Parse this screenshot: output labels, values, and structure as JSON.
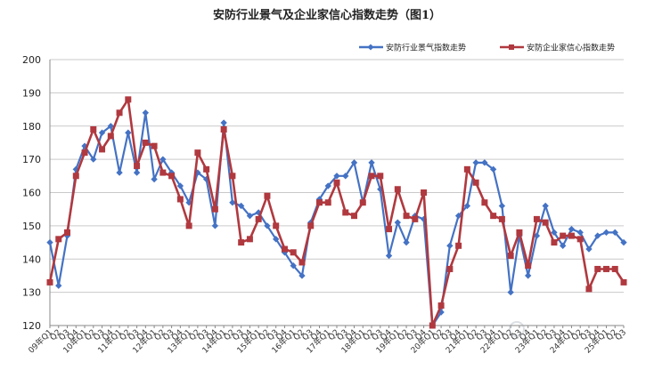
{
  "chart_data": {
    "type": "line",
    "title": "安防行业景气及企业家信心指数走势（图1）",
    "legend_position": "top-right",
    "grid": true,
    "ylim": [
      120,
      200
    ],
    "yticks": [
      120,
      130,
      140,
      150,
      160,
      170,
      180,
      190,
      200
    ],
    "x": [
      "09年Q1",
      "Q2",
      "Q3",
      "Q4",
      "10年Q1",
      "Q2",
      "Q3",
      "Q4",
      "11年Q1",
      "Q2",
      "Q3",
      "Q4",
      "12年Q1",
      "Q2",
      "Q3",
      "Q4",
      "13年Q1",
      "Q2",
      "Q3",
      "Q4",
      "14年Q1",
      "Q2",
      "Q3",
      "Q4",
      "15年Q1",
      "Q2",
      "Q3",
      "Q4",
      "16年Q1",
      "Q2",
      "Q3",
      "Q4",
      "17年Q1",
      "Q2",
      "Q3",
      "Q4",
      "18年Q1",
      "Q2",
      "Q3",
      "Q4",
      "19年Q1",
      "Q2",
      "Q3",
      "Q4",
      "20年Q1",
      "Q2",
      "Q3",
      "Q4",
      "21年Q1",
      "Q2",
      "Q3",
      "Q4",
      "22年Q1",
      "Q2",
      "Q3",
      "Q4",
      "23年Q1",
      "Q2",
      "Q3",
      "Q4",
      "24年Q1",
      "Q2",
      "Q3",
      "Q4",
      "25年Q1",
      "Q2",
      "Q3"
    ],
    "series": [
      {
        "name": "安防行业景气指数走势",
        "color": "#4472c4",
        "marker": "diamond",
        "values": [
          145,
          132,
          147,
          167,
          174,
          170,
          178,
          180,
          166,
          178,
          166,
          184,
          164,
          170,
          166,
          162,
          157,
          166,
          164,
          150,
          181,
          157,
          156,
          153,
          154,
          150,
          146,
          142,
          138,
          135,
          151,
          158,
          162,
          165,
          165,
          169,
          157,
          169,
          161,
          141,
          151,
          145,
          153,
          152,
          120,
          124,
          144,
          153,
          156,
          169,
          169,
          167,
          156,
          130,
          147,
          135,
          147,
          156,
          148,
          144,
          149,
          148,
          143,
          147,
          148,
          148,
          145
        ]
      },
      {
        "name": "安防企业家信心指数走势",
        "color": "#b0393f",
        "marker": "square",
        "values": [
          133,
          146,
          148,
          165,
          172,
          179,
          173,
          177,
          184,
          188,
          168,
          175,
          174,
          166,
          165,
          158,
          150,
          172,
          167,
          155,
          179,
          165,
          145,
          146,
          152,
          159,
          150,
          143,
          142,
          139,
          150,
          157,
          157,
          163,
          154,
          153,
          157,
          165,
          165,
          149,
          161,
          153,
          152,
          160,
          120,
          126,
          137,
          144,
          167,
          163,
          157,
          153,
          152,
          141,
          148,
          138,
          152,
          151,
          145,
          147,
          147,
          146,
          131,
          137,
          137,
          137,
          133
        ]
      }
    ]
  }
}
